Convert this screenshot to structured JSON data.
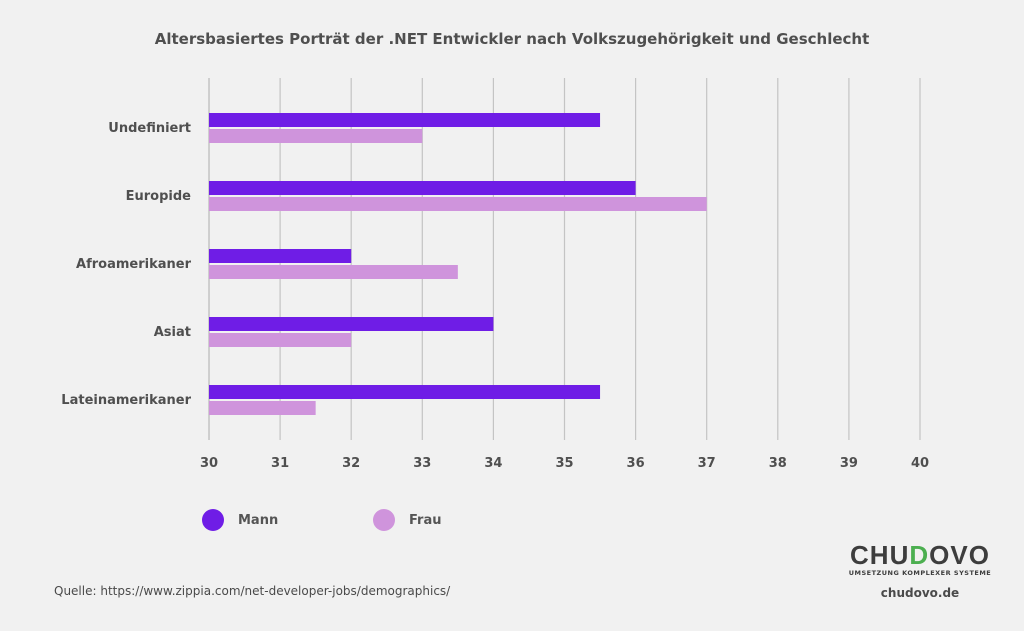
{
  "chart_data": {
    "type": "bar",
    "orientation": "horizontal",
    "title": "Altersbasiertes Porträt der .NET Entwickler nach Volkszugehörigkeit und Geschlecht",
    "categories": [
      "Undefiniert",
      "Europide",
      "Afroamerikaner",
      "Asiat",
      "Lateinamerikaner"
    ],
    "series": [
      {
        "name": "Mann",
        "color": "#6f1de6",
        "values": [
          35.5,
          36,
          32,
          34,
          35.5
        ]
      },
      {
        "name": "Frau",
        "color": "#cf94dc",
        "values": [
          33,
          37,
          33.5,
          32,
          31.5
        ]
      }
    ],
    "xticks": [
      "30",
      "31",
      "32",
      "33",
      "34",
      "35",
      "36",
      "37",
      "38",
      "39",
      "40"
    ],
    "xlim": [
      30,
      40
    ],
    "grid": true,
    "legend_position": "bottom-left"
  },
  "legend": [
    {
      "label": "Mann",
      "color": "#6f1de6"
    },
    {
      "label": "Frau",
      "color": "#cf94dc"
    }
  ],
  "footer": {
    "source": "Quelle: https://www.zippia.com/net-developer-jobs/demographics/",
    "logo_prefix": "CHU",
    "logo_accent": "D",
    "logo_suffix": "OVO",
    "logo_tagline": "UMSETZUNG KOMPLEXER SYSTEME",
    "website": "chudovo.de"
  }
}
